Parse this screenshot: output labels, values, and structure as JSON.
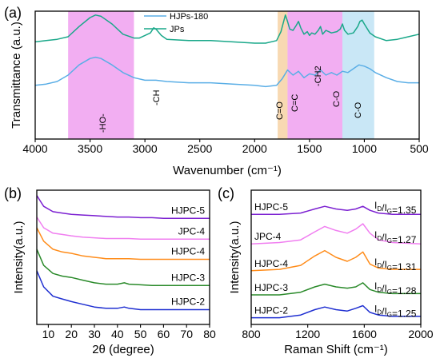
{
  "chart_data": [
    {
      "panel_label": "(a)",
      "type": "line",
      "xlabel": "Wavenumber (cm⁻¹)",
      "ylabel": "Transmittance (a.u.)",
      "xlim": [
        4000,
        500
      ],
      "xticks": [
        "4000",
        "3500",
        "3000",
        "2500",
        "2000",
        "1500",
        "1000",
        "500"
      ],
      "legend": {
        "placement": "top-center"
      },
      "series": [
        {
          "name": "HJPs-180",
          "color": "#5aaee6",
          "x": [
            4000,
            3900,
            3800,
            3700,
            3600,
            3500,
            3450,
            3400,
            3300,
            3200,
            3100,
            3000,
            2900,
            2800,
            2600,
            2400,
            2200,
            2000,
            1900,
            1800,
            1750,
            1700,
            1650,
            1600,
            1550,
            1500,
            1450,
            1400,
            1350,
            1300,
            1250,
            1200,
            1150,
            1100,
            1050,
            1000,
            950,
            900,
            800,
            700,
            600,
            500
          ],
          "y": [
            0.42,
            0.43,
            0.45,
            0.5,
            0.58,
            0.63,
            0.64,
            0.63,
            0.58,
            0.52,
            0.48,
            0.46,
            0.46,
            0.45,
            0.44,
            0.44,
            0.43,
            0.42,
            0.41,
            0.42,
            0.47,
            0.54,
            0.5,
            0.53,
            0.48,
            0.51,
            0.5,
            0.54,
            0.5,
            0.52,
            0.5,
            0.53,
            0.52,
            0.55,
            0.58,
            0.57,
            0.55,
            0.52,
            0.48,
            0.45,
            0.44,
            0.44
          ]
        },
        {
          "name": "JPs",
          "color": "#1aa88a",
          "x": [
            4000,
            3900,
            3800,
            3700,
            3600,
            3500,
            3450,
            3400,
            3300,
            3200,
            3100,
            3050,
            3000,
            2950,
            2920,
            2900,
            2850,
            2800,
            2600,
            2400,
            2200,
            2000,
            1900,
            1800,
            1760,
            1720,
            1700,
            1680,
            1650,
            1620,
            1600,
            1580,
            1550,
            1520,
            1500,
            1480,
            1450,
            1420,
            1400,
            1380,
            1350,
            1300,
            1250,
            1220,
            1200,
            1180,
            1150,
            1100,
            1060,
            1040,
            1020,
            1000,
            950,
            900,
            800,
            700,
            600,
            500
          ],
          "y": [
            0.76,
            0.77,
            0.78,
            0.8,
            0.88,
            0.95,
            0.97,
            0.96,
            0.9,
            0.82,
            0.79,
            0.79,
            0.81,
            0.83,
            0.87,
            0.86,
            0.81,
            0.78,
            0.77,
            0.77,
            0.76,
            0.75,
            0.75,
            0.77,
            0.84,
            0.97,
            0.92,
            0.86,
            0.85,
            0.89,
            0.92,
            0.87,
            0.82,
            0.84,
            0.81,
            0.83,
            0.82,
            0.85,
            0.88,
            0.82,
            0.85,
            0.83,
            0.84,
            0.86,
            0.9,
            0.85,
            0.82,
            0.83,
            0.88,
            0.92,
            0.93,
            0.9,
            0.83,
            0.8,
            0.77,
            0.78,
            0.8,
            0.82
          ]
        }
      ],
      "shaded_regions": [
        {
          "x": [
            3700,
            3100
          ],
          "color": "#f0a0f0"
        },
        {
          "x": [
            1790,
            1700
          ],
          "color": "#f7d2a5"
        },
        {
          "x": [
            1700,
            1200
          ],
          "color": "#f0a0f0"
        },
        {
          "x": [
            1200,
            910
          ],
          "color": "#bfe3f5"
        }
      ],
      "annotations": [
        "-HO-",
        "-CH",
        "C=O",
        "C=C",
        "-CH2",
        "C-O",
        "C-O"
      ]
    },
    {
      "panel_label": "(b)",
      "type": "line",
      "xlabel": "2θ (degree)",
      "ylabel": "Intensity(a.u.)",
      "xlim": [
        5,
        80
      ],
      "xticks": [
        "10",
        "20",
        "30",
        "40",
        "50",
        "60",
        "70",
        "80"
      ],
      "series": [
        {
          "name": "HJPC-5",
          "color": "#7b1fd1",
          "x": [
            5,
            8,
            12,
            16,
            20,
            25,
            30,
            35,
            40,
            45,
            50,
            55,
            60,
            65,
            70,
            75,
            80
          ],
          "y": [
            0.96,
            0.88,
            0.84,
            0.83,
            0.82,
            0.815,
            0.81,
            0.805,
            0.8,
            0.8,
            0.795,
            0.795,
            0.79,
            0.79,
            0.79,
            0.79,
            0.79
          ]
        },
        {
          "name": "JPC-4",
          "color": "#f07ef0",
          "x": [
            5,
            8,
            12,
            16,
            20,
            25,
            30,
            35,
            40,
            45,
            50,
            55,
            60,
            65,
            70,
            75,
            80
          ],
          "y": [
            0.8,
            0.72,
            0.68,
            0.67,
            0.66,
            0.65,
            0.645,
            0.64,
            0.64,
            0.64,
            0.635,
            0.635,
            0.635,
            0.635,
            0.635,
            0.635,
            0.635
          ]
        },
        {
          "name": "HJPC-4",
          "color": "#ff8c1a",
          "x": [
            5,
            8,
            12,
            16,
            20,
            25,
            30,
            35,
            40,
            45,
            50,
            55,
            60,
            65,
            70,
            75,
            80
          ],
          "y": [
            0.72,
            0.62,
            0.56,
            0.54,
            0.53,
            0.51,
            0.5,
            0.49,
            0.49,
            0.49,
            0.485,
            0.485,
            0.485,
            0.485,
            0.485,
            0.485,
            0.485
          ]
        },
        {
          "name": "HJPC-3",
          "color": "#2a8a2a",
          "x": [
            5,
            8,
            12,
            16,
            20,
            25,
            30,
            35,
            40,
            43,
            45,
            50,
            55,
            60,
            65,
            70,
            75,
            80
          ],
          "y": [
            0.56,
            0.44,
            0.38,
            0.36,
            0.35,
            0.33,
            0.31,
            0.3,
            0.3,
            0.31,
            0.3,
            0.295,
            0.29,
            0.29,
            0.29,
            0.29,
            0.29,
            0.29
          ]
        },
        {
          "name": "HJPC-2",
          "color": "#1f2fd1",
          "x": [
            5,
            8,
            12,
            16,
            20,
            25,
            30,
            35,
            40,
            43,
            45,
            50,
            55,
            60,
            65,
            70,
            75,
            80
          ],
          "y": [
            0.4,
            0.28,
            0.21,
            0.19,
            0.17,
            0.15,
            0.13,
            0.12,
            0.12,
            0.13,
            0.12,
            0.11,
            0.11,
            0.11,
            0.11,
            0.11,
            0.11,
            0.11
          ]
        }
      ]
    },
    {
      "panel_label": "(c)",
      "type": "line",
      "xlabel": "Raman Shift (cm⁻¹)",
      "ylabel": "Intensity(a.u.)",
      "xlim": [
        800,
        2000
      ],
      "xticks": [
        "800",
        "1200",
        "1600",
        "2000"
      ],
      "series": [
        {
          "name": "HJPC-5",
          "ratio_label": "I_D/I_G=1.35",
          "color": "#7b1fd1",
          "x": [
            800,
            1000,
            1150,
            1250,
            1320,
            1400,
            1480,
            1540,
            1590,
            1640,
            1700,
            1800,
            2000
          ],
          "y": [
            0.82,
            0.82,
            0.83,
            0.86,
            0.88,
            0.86,
            0.85,
            0.86,
            0.88,
            0.85,
            0.83,
            0.82,
            0.82
          ]
        },
        {
          "name": "JPC-4",
          "ratio_label": "I_D/I_G=1.27",
          "color": "#f07ef0",
          "x": [
            800,
            1000,
            1150,
            1250,
            1320,
            1400,
            1480,
            1540,
            1590,
            1640,
            1700,
            1800,
            2000
          ],
          "y": [
            0.6,
            0.61,
            0.63,
            0.69,
            0.73,
            0.7,
            0.68,
            0.71,
            0.75,
            0.68,
            0.63,
            0.61,
            0.6
          ]
        },
        {
          "name": "HJPC-4",
          "ratio_label": "I_D/I_G=1.31",
          "color": "#ff8c1a",
          "x": [
            800,
            1000,
            1150,
            1250,
            1320,
            1400,
            1480,
            1540,
            1590,
            1640,
            1700,
            1800,
            2000
          ],
          "y": [
            0.4,
            0.41,
            0.44,
            0.51,
            0.55,
            0.5,
            0.47,
            0.5,
            0.54,
            0.45,
            0.42,
            0.41,
            0.41
          ]
        },
        {
          "name": "HJPC-3",
          "ratio_label": "I_D/I_G=1.28",
          "color": "#2a8a2a",
          "x": [
            800,
            1000,
            1150,
            1250,
            1320,
            1400,
            1480,
            1540,
            1590,
            1640,
            1700,
            1800,
            2000
          ],
          "y": [
            0.22,
            0.22,
            0.24,
            0.28,
            0.3,
            0.28,
            0.27,
            0.28,
            0.31,
            0.26,
            0.24,
            0.23,
            0.23
          ]
        },
        {
          "name": "HJPC-2",
          "ratio_label": "I_D/I_G=1.25",
          "color": "#1f2fd1",
          "x": [
            800,
            1000,
            1150,
            1250,
            1320,
            1400,
            1480,
            1540,
            1590,
            1640,
            1700,
            1800,
            2000
          ],
          "y": [
            0.05,
            0.05,
            0.07,
            0.11,
            0.13,
            0.11,
            0.1,
            0.12,
            0.14,
            0.09,
            0.07,
            0.06,
            0.06
          ]
        }
      ]
    }
  ]
}
